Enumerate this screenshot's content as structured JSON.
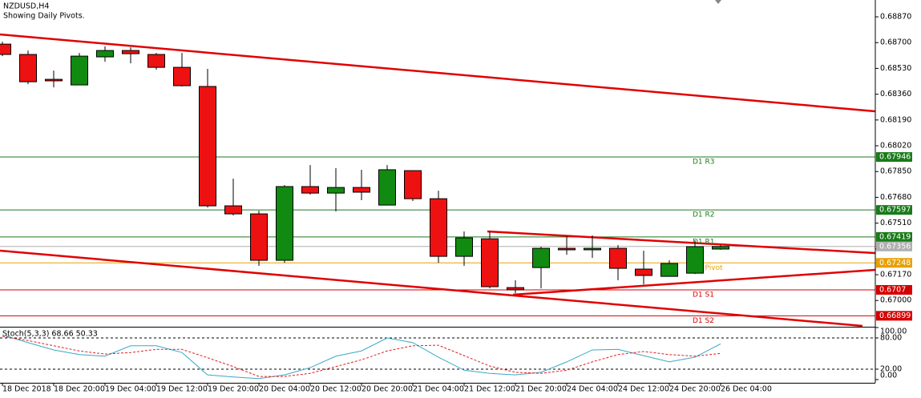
{
  "chart_data": [
    {
      "type": "candlestick",
      "title": "NZDUSD,H4",
      "subtitle": "Showing Daily Pivots.",
      "categories": [
        "18 Dec 2018",
        null,
        "18 Dec 20:00",
        null,
        "19 Dec 04:00",
        null,
        "19 Dec 12:00",
        null,
        "19 Dec 20:00",
        null,
        "20 Dec 04:00",
        null,
        "20 Dec 12:00",
        null,
        "20 Dec 20:00",
        null,
        "21 Dec 04:00",
        null,
        "21 Dec 12:00",
        null,
        "21 Dec 20:00",
        null,
        "24 Dec 04:00",
        null,
        "24 Dec 12:00",
        null,
        "24 Dec 20:00",
        null,
        "26 Dec 04:00"
      ],
      "open": [
        0.6869,
        0.68622,
        0.68458,
        0.68421,
        0.68606,
        0.68648,
        0.68622,
        0.68537,
        0.68411,
        0.67624,
        0.67571,
        0.67265,
        0.67751,
        0.67708,
        0.67745,
        0.67629,
        0.67856,
        0.67671,
        0.67291,
        0.67407,
        0.67085,
        0.67217,
        0.67344,
        0.67334,
        0.67344,
        0.67207,
        0.67159,
        0.6718,
        0.67339
      ],
      "high": [
        0.68706,
        0.68648,
        0.68516,
        0.68632,
        0.68675,
        0.68669,
        0.68632,
        0.68632,
        0.68527,
        0.67803,
        0.67592,
        0.67761,
        0.67893,
        0.67872,
        0.67862,
        0.67893,
        0.67856,
        0.67724,
        0.67455,
        0.67455,
        0.67133,
        0.67355,
        0.67423,
        0.67429,
        0.67365,
        0.67328,
        0.67265,
        0.67397,
        0.67365
      ],
      "low": [
        0.68611,
        0.68426,
        0.68405,
        0.68421,
        0.68574,
        0.68564,
        0.68522,
        0.68411,
        0.67613,
        0.67561,
        0.67228,
        0.67249,
        0.67698,
        0.67587,
        0.67661,
        0.67629,
        0.67656,
        0.67249,
        0.67228,
        0.6708,
        0.67048,
        0.6708,
        0.67302,
        0.67281,
        0.67133,
        0.67106,
        0.67159,
        0.67175,
        0.67334
      ],
      "close": [
        0.68622,
        0.68442,
        0.68448,
        0.68611,
        0.68648,
        0.68627,
        0.68537,
        0.68416,
        0.67624,
        0.67571,
        0.67265,
        0.67751,
        0.67708,
        0.67745,
        0.67714,
        0.67862,
        0.67671,
        0.67291,
        0.67413,
        0.67091,
        0.6707,
        0.67344,
        0.67334,
        0.67344,
        0.67212,
        0.67165,
        0.67244,
        0.67355,
        0.67356
      ],
      "up_color": "#108a10",
      "down_color": "#ee1111",
      "ylim": [
        0.66827,
        0.68981
      ],
      "yticks": [
        {
          "value": 0.6887,
          "label": "0.68870"
        },
        {
          "value": 0.687,
          "label": "0.68700"
        },
        {
          "value": 0.6853,
          "label": "0.68530"
        },
        {
          "value": 0.6836,
          "label": "0.68360"
        },
        {
          "value": 0.6819,
          "label": "0.68190"
        },
        {
          "value": 0.6802,
          "label": "0.68020"
        },
        {
          "value": 0.6785,
          "label": "0.67850"
        },
        {
          "value": 0.6768,
          "label": "0.67680"
        },
        {
          "value": 0.6751,
          "label": "0.67510"
        },
        {
          "value": 0.6734,
          "label": "0.67340"
        },
        {
          "value": 0.6717,
          "label": "0.67170"
        },
        {
          "value": 0.67,
          "label": "0.67000"
        }
      ],
      "pivots": [
        {
          "name": "D1 R3",
          "value": 0.67946,
          "color": "#1a7a1a"
        },
        {
          "name": "D1 R2",
          "value": 0.67597,
          "color": "#1a7a1a"
        },
        {
          "name": "D1 R1",
          "value": 0.67419,
          "color": "#1a7a1a"
        },
        {
          "name": "D1 Pivot",
          "value": 0.67248,
          "color": "#e8a000"
        },
        {
          "name": "D1 S1",
          "value": 0.6707,
          "color": "#d40000"
        },
        {
          "name": "D1 S2",
          "value": 0.66899,
          "color": "#d40000"
        }
      ],
      "current_price": 0.67356,
      "current_price_color": "#b0b0b0"
    },
    {
      "type": "line",
      "title": "Stoch(5,3,3) 68.66 50.33",
      "series": [
        {
          "color": "#3aa8c8",
          "dashed": false,
          "values": [
            86,
            71,
            57,
            48,
            45,
            65,
            65,
            52,
            9,
            5,
            2,
            9,
            23,
            45,
            55,
            80,
            71,
            43,
            18,
            12,
            9,
            14,
            34,
            57,
            58,
            46,
            34,
            43,
            68.66
          ]
        },
        {
          "color": "#e02020",
          "dashed": true,
          "values": [
            83,
            75,
            65,
            55,
            49,
            52,
            58,
            58,
            42,
            25,
            6,
            6,
            12,
            25,
            38,
            55,
            65,
            66,
            46,
            26,
            14,
            12,
            18,
            34,
            48,
            54,
            48,
            45,
            50.33
          ]
        }
      ],
      "ylim": [
        0,
        100
      ],
      "yticks": [
        {
          "value": 100,
          "label": "100.00"
        },
        {
          "value": 80,
          "label": "80.00"
        },
        {
          "value": 20,
          "label": "20.00"
        },
        {
          "value": 0,
          "label": "0.00"
        }
      ],
      "levels": [
        80,
        20
      ]
    }
  ]
}
